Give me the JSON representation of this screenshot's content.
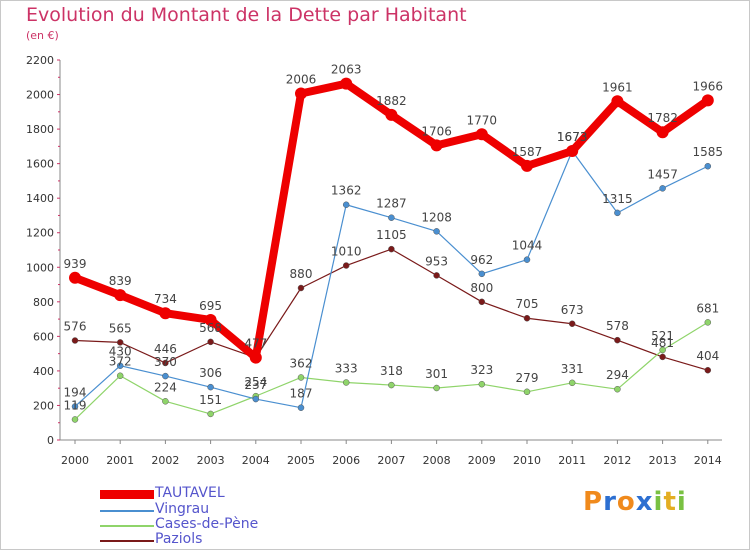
{
  "title": "Evolution du Montant de la Dette par Habitant",
  "subtitle": "(en €)",
  "logo": {
    "text": "Proxiti",
    "letters": [
      "P",
      "r",
      "o",
      "x",
      "i",
      "t",
      "i"
    ],
    "colors": [
      "#f08a1c",
      "#2c6fd1",
      "#f08a1c",
      "#2c6fd1",
      "#79c142",
      "#e3ae22",
      "#79c142"
    ]
  },
  "chart_data": {
    "type": "line",
    "x": [
      "2000",
      "2001",
      "2002",
      "2003",
      "2004",
      "2005",
      "2006",
      "2007",
      "2008",
      "2009",
      "2010",
      "2011",
      "2012",
      "2013",
      "2014"
    ],
    "ylim": [
      0,
      2200
    ],
    "yticks": [
      0,
      200,
      400,
      600,
      800,
      1000,
      1200,
      1400,
      1600,
      1800,
      2000,
      2200
    ],
    "grid": false,
    "legend_position": "bottom-left",
    "series": [
      {
        "name": "Paziols",
        "color": "#7a1a1a",
        "values": [
          576,
          565,
          446,
          568,
          477,
          880,
          1010,
          1105,
          953,
          800,
          705,
          673,
          578,
          481,
          404
        ]
      },
      {
        "name": "Cases-de-Pène",
        "color": "#8fd46a",
        "values": [
          119,
          372,
          224,
          151,
          254,
          362,
          333,
          318,
          301,
          323,
          279,
          331,
          294,
          521,
          681
        ]
      },
      {
        "name": "Vingrau",
        "color": "#4a8fd0",
        "values": [
          194,
          430,
          370,
          306,
          237,
          187,
          1362,
          1287,
          1208,
          962,
          1044,
          1673,
          1315,
          1457,
          1585
        ]
      },
      {
        "name": "TAUTAVEL",
        "color": "#ee0000",
        "values": [
          939,
          839,
          734,
          695,
          477,
          2006,
          2063,
          1882,
          1706,
          1770,
          1587,
          1673,
          1961,
          1782,
          1966
        ]
      }
    ]
  }
}
